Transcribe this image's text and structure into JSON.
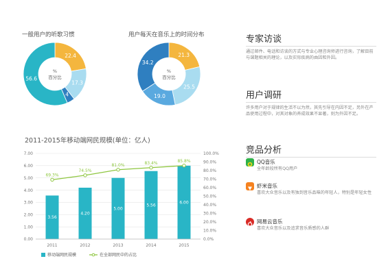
{
  "charts": {
    "donut1": {
      "title": "一般用户的听歌习惯",
      "center": "%\n百分比",
      "slices": [
        {
          "value": 22.4,
          "color": "#f4b63e",
          "label": "22.4"
        },
        {
          "value": 17.3,
          "color": "#a9dcf0",
          "label": "17.3"
        },
        {
          "value": 4.0,
          "color": "#2f7fc0",
          "label": "4"
        },
        {
          "value": 56.6,
          "color": "#29b5c6",
          "label": "56.6"
        }
      ]
    },
    "donut2": {
      "title": "用户每天在音乐上的时间分布",
      "center": "%\n百分比",
      "slices": [
        {
          "value": 21.3,
          "color": "#f4b63e",
          "label": "21.3"
        },
        {
          "value": 25.5,
          "color": "#a9dcf0",
          "label": "25.5"
        },
        {
          "value": 19.0,
          "color": "#5aa9df",
          "label": "19.0"
        },
        {
          "value": 34.2,
          "color": "#2f7fc0",
          "label": "34.2"
        }
      ]
    }
  },
  "chart_data": [
    {
      "type": "pie",
      "title": "一般用户的听歌习惯",
      "values": [
        22.4,
        17.3,
        4,
        56.6
      ]
    },
    {
      "type": "pie",
      "title": "用户每天在音乐上的时间分布",
      "values": [
        21.3,
        25.5,
        19.0,
        34.2
      ]
    },
    {
      "type": "bar",
      "title": "2011-2015年移动端网民规模(单位：亿人)",
      "categories": [
        "2011",
        "2012",
        "2013",
        "2014",
        "2015"
      ],
      "series": [
        {
          "name": "移动端网民规模",
          "type": "bar",
          "values": [
            3.56,
            4.2,
            5.0,
            5.56,
            6.0
          ],
          "labels": [
            "3.56",
            "4.20",
            "5.00",
            "5.56",
            "6.00"
          ]
        },
        {
          "name": "在全部网民中的占比",
          "type": "line",
          "axis": "right",
          "values": [
            69.3,
            74.5,
            81.0,
            83.4,
            85.8
          ],
          "labels": [
            "69.3%",
            "74.5%",
            "81.0%",
            "83.4%",
            "85.8%"
          ]
        }
      ],
      "y_ticks": [
        "0.00",
        "1.00",
        "2.00",
        "3.00",
        "4.00",
        "5.00",
        "6.00",
        "7.00"
      ],
      "y2_ticks": [
        "0.0%",
        "10.0%",
        "20.0%",
        "30.0%",
        "40.0%",
        "50.0%",
        "60.0%",
        "70.0%",
        "80.0%",
        "90.0%",
        "100.0%"
      ],
      "ylim": [
        0,
        7
      ],
      "y2lim": [
        0,
        100
      ],
      "colors": {
        "bar": "#29b5c6",
        "line": "#8ec63f"
      },
      "legend_position": "bottom"
    }
  ],
  "right": {
    "interview": {
      "title": "专家访谈",
      "text": "通过邮件、电话和访谈的方式与专业心理咨询师进行咨询，了解目前与课题相关的理论，以及实际疾病的由因和外因。"
    },
    "survey": {
      "title": "用户调研",
      "text": "许多用户对于规律的生活不以为然，其先引导在内因不足，另外在产品使用过程中，对其对象的养成效果不显著，则为外因不足。"
    },
    "competitors": {
      "title": "竞品分析",
      "apps": [
        {
          "name": "QQ音乐",
          "desc": "全年龄段所有QQ用户",
          "icon": "qq-music-icon"
        },
        {
          "name": "虾米音乐",
          "desc": "喜欢大众音乐以及有独到音乐品味的年轻人，特别是年轻女性",
          "icon": "xiami-music-icon"
        },
        {
          "name": "网易云音乐",
          "desc": "喜欢大众音乐以及追求音乐质感的人群",
          "icon": "netease-music-icon"
        }
      ]
    }
  }
}
